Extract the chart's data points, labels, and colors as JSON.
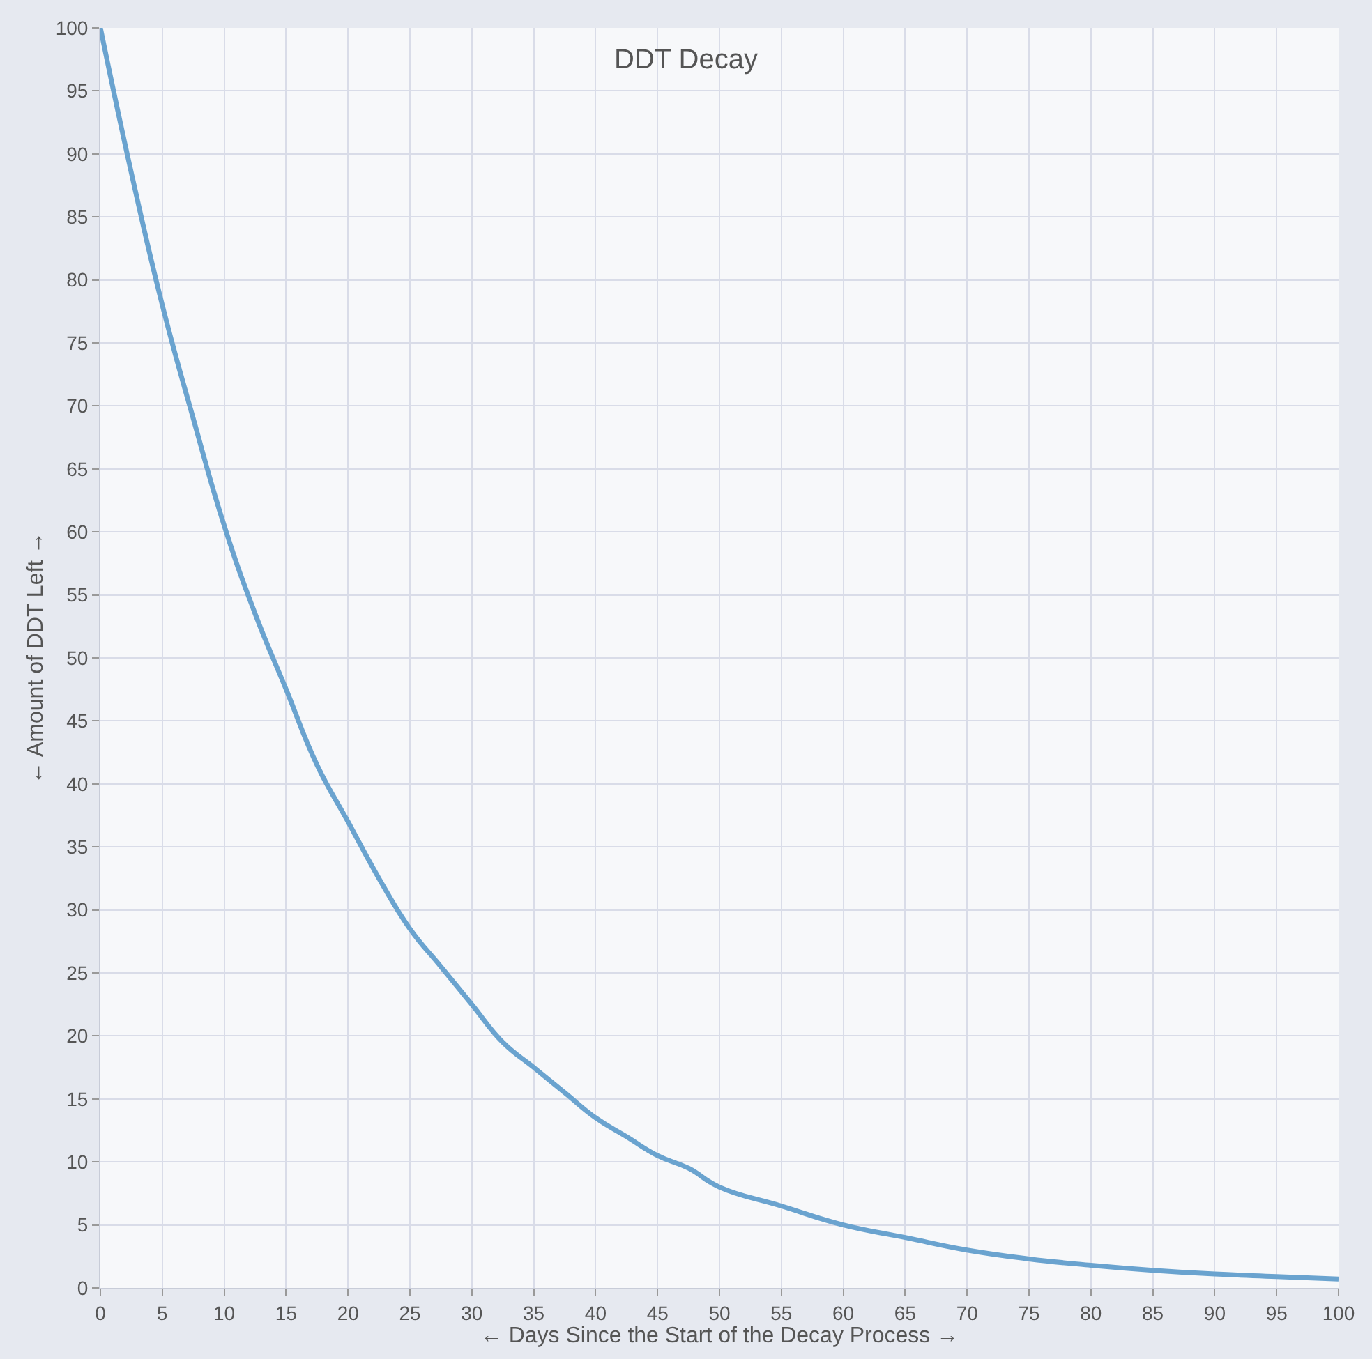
{
  "chart_data": {
    "type": "line",
    "title": "DDT Decay",
    "xlabel": "← Days Since the Start of the Decay Process →",
    "ylabel": "← Amount of DDT Left →",
    "x": [
      0,
      2.5,
      5,
      7.5,
      10,
      12.5,
      15,
      17.5,
      20,
      22.5,
      25,
      27.5,
      30,
      32.5,
      35,
      37.5,
      40,
      42.5,
      45,
      47.5,
      50,
      55,
      60,
      65,
      70,
      75,
      80,
      85,
      90,
      95,
      100
    ],
    "series": [
      {
        "color": "#6aa3cf",
        "values": [
          100,
          88.5,
          78,
          69,
          60.5,
          53.5,
          47.5,
          41.5,
          37,
          32.5,
          28.5,
          25.5,
          22.5,
          19.5,
          17.5,
          15.5,
          13.5,
          12,
          10.5,
          9.5,
          8,
          6.5,
          5,
          4,
          3,
          2.3,
          1.8,
          1.4,
          1.1,
          0.9,
          0.7
        ]
      }
    ],
    "xlim": [
      0,
      100
    ],
    "ylim": [
      0,
      100
    ],
    "xticks": [
      0,
      5,
      10,
      15,
      20,
      25,
      30,
      35,
      40,
      45,
      50,
      55,
      60,
      65,
      70,
      75,
      80,
      85,
      90,
      95,
      100
    ],
    "yticks": [
      0,
      5,
      10,
      15,
      20,
      25,
      30,
      35,
      40,
      45,
      50,
      55,
      60,
      65,
      70,
      75,
      80,
      85,
      90,
      95,
      100
    ],
    "grid": true,
    "marker": "none",
    "line_style": "solid"
  }
}
